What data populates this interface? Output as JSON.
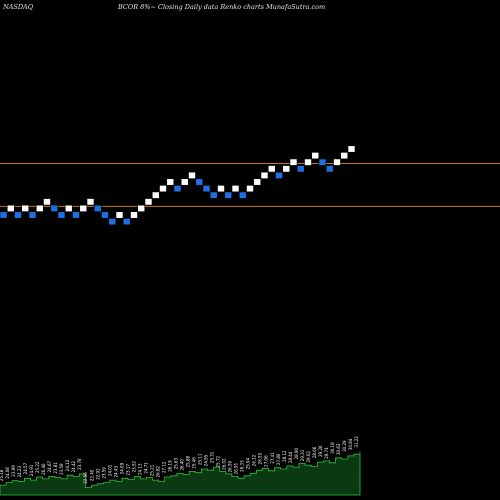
{
  "header": {
    "exchange": "NASDAQ",
    "description": "BCOR 8%~  Closing Daily data  Renko  charts MunafaSutra.com"
  },
  "colors": {
    "background": "#000000",
    "up_brick": "#ffffff",
    "down_brick": "#1e6fe0",
    "reference_line": "#c07a18",
    "volume_fill": "#0b3a12",
    "volume_edge": "#2fbf3a",
    "volume_label": "#ffffff"
  },
  "chart_data": {
    "type": "renko",
    "bricks": [
      {
        "direction": "down",
        "level": 0
      },
      {
        "direction": "up",
        "level": 1
      },
      {
        "direction": "down",
        "level": 0
      },
      {
        "direction": "up",
        "level": 1
      },
      {
        "direction": "down",
        "level": 0
      },
      {
        "direction": "up",
        "level": 1
      },
      {
        "direction": "up",
        "level": 2
      },
      {
        "direction": "down",
        "level": 1
      },
      {
        "direction": "down",
        "level": 0
      },
      {
        "direction": "up",
        "level": 1
      },
      {
        "direction": "down",
        "level": 0
      },
      {
        "direction": "up",
        "level": 1
      },
      {
        "direction": "up",
        "level": 2
      },
      {
        "direction": "down",
        "level": 1
      },
      {
        "direction": "down",
        "level": 0
      },
      {
        "direction": "down",
        "level": -1
      },
      {
        "direction": "up",
        "level": 0
      },
      {
        "direction": "down",
        "level": -1
      },
      {
        "direction": "up",
        "level": 0
      },
      {
        "direction": "up",
        "level": 1
      },
      {
        "direction": "up",
        "level": 2
      },
      {
        "direction": "up",
        "level": 3
      },
      {
        "direction": "up",
        "level": 4
      },
      {
        "direction": "up",
        "level": 5
      },
      {
        "direction": "down",
        "level": 4
      },
      {
        "direction": "up",
        "level": 5
      },
      {
        "direction": "up",
        "level": 6
      },
      {
        "direction": "down",
        "level": 5
      },
      {
        "direction": "down",
        "level": 4
      },
      {
        "direction": "down",
        "level": 3
      },
      {
        "direction": "up",
        "level": 4
      },
      {
        "direction": "down",
        "level": 3
      },
      {
        "direction": "up",
        "level": 4
      },
      {
        "direction": "down",
        "level": 3
      },
      {
        "direction": "up",
        "level": 4
      },
      {
        "direction": "up",
        "level": 5
      },
      {
        "direction": "up",
        "level": 6
      },
      {
        "direction": "up",
        "level": 7
      },
      {
        "direction": "down",
        "level": 6
      },
      {
        "direction": "up",
        "level": 7
      },
      {
        "direction": "up",
        "level": 8
      },
      {
        "direction": "down",
        "level": 7
      },
      {
        "direction": "up",
        "level": 8
      },
      {
        "direction": "up",
        "level": 9
      },
      {
        "direction": "down",
        "level": 8
      },
      {
        "direction": "down",
        "level": 7
      },
      {
        "direction": "up",
        "level": 8
      },
      {
        "direction": "up",
        "level": 9
      },
      {
        "direction": "up",
        "level": 10
      }
    ],
    "reference_lines": [
      {
        "level": 7.8
      },
      {
        "level": 1.3
      }
    ],
    "volume_profile": [
      0.16,
      0.2,
      0.23,
      0.22,
      0.27,
      0.24,
      0.29,
      0.26,
      0.3,
      0.28,
      0.26,
      0.32,
      0.3,
      0.34,
      0.12,
      0.16,
      0.18,
      0.2,
      0.24,
      0.22,
      0.27,
      0.25,
      0.3,
      0.26,
      0.28,
      0.24,
      0.22,
      0.29,
      0.31,
      0.35,
      0.33,
      0.38,
      0.36,
      0.42,
      0.4,
      0.45,
      0.38,
      0.34,
      0.3,
      0.27,
      0.31,
      0.35,
      0.4,
      0.43,
      0.39,
      0.44,
      0.42,
      0.47,
      0.45,
      0.51,
      0.48,
      0.46,
      0.53,
      0.55,
      0.52,
      0.6,
      0.58,
      0.63,
      0.66,
      0.7
    ],
    "volume_labels": [
      "25.18",
      "24.08",
      "23.99",
      "24.23",
      "24.57",
      "24.91",
      "25.22",
      "26.46",
      "24.67",
      "23.81",
      "23.59",
      "24.12",
      "24.42",
      "23.78",
      "22.56",
      "22.40",
      "22.92",
      "23.59",
      "24.01",
      "24.43",
      "24.09",
      "23.17",
      "23.52",
      "24.13",
      "24.71",
      "25.21",
      "26.82",
      "27.12",
      "26.19",
      "25.63",
      "26.40",
      "25.88",
      "25.46",
      "25.11",
      "24.95",
      "25.31",
      "25.72",
      "26.02",
      "26.59",
      "26.91",
      "26.33",
      "25.94",
      "26.12",
      "26.55",
      "27.06",
      "27.41",
      "27.80",
      "28.12",
      "28.44",
      "28.90",
      "29.31",
      "29.02",
      "28.66",
      "29.26",
      "29.74",
      "30.18",
      "30.63",
      "30.29",
      "30.84",
      "31.22"
    ]
  }
}
